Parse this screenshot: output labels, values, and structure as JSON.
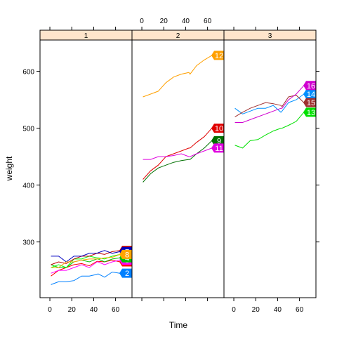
{
  "chart_data": {
    "type": "line",
    "xlabel": "Time",
    "ylabel": "weight",
    "xlim": [
      -9,
      75
    ],
    "ylim": [
      202,
      655
    ],
    "x_ticks": [
      0,
      20,
      40,
      60
    ],
    "y_ticks": [
      300,
      400,
      500,
      600
    ],
    "x": [
      1,
      8,
      15,
      22,
      29,
      36,
      43,
      44,
      50,
      57,
      64
    ],
    "colors": {
      "1": "#FF0000",
      "2": "#0080FF",
      "3": "#FF00FF",
      "4": "#00C000",
      "5": "#00FF00",
      "6": "#C00000",
      "7": "#0000C0",
      "8": "#FFA500",
      "9": "#007000",
      "10": "#E00000",
      "11": "#E000E0",
      "12": "#FFA000",
      "13": "#00E000",
      "14": "#0090FF",
      "15": "#A03030",
      "16": "#D000D0"
    },
    "panels": [
      {
        "strip": "1",
        "series": [
          {
            "name": "1",
            "values": [
              240,
              250,
              255,
              260,
              262,
              258,
              266,
              266,
              265,
              268,
              265
            ]
          },
          {
            "name": "2",
            "values": [
              225,
              230,
              230,
              232,
              240,
              240,
              243,
              244,
              238,
              247,
              245
            ]
          },
          {
            "name": "3",
            "values": [
              245,
              250,
              250,
              255,
              260,
              255,
              265,
              265,
              260,
              265,
              268
            ]
          },
          {
            "name": "4",
            "values": [
              260,
              255,
              255,
              265,
              268,
              265,
              270,
              270,
              265,
              270,
              272
            ]
          },
          {
            "name": "5",
            "values": [
              255,
              260,
              255,
              270,
              270,
              275,
              272,
              272,
              270,
              275,
              278
            ]
          },
          {
            "name": "6",
            "values": [
              260,
              265,
              262,
              270,
              275,
              275,
              280,
              280,
              278,
              283,
              285
            ]
          },
          {
            "name": "7",
            "values": [
              275,
              275,
              265,
              275,
              275,
              280,
              280,
              281,
              285,
              280,
              283
            ]
          },
          {
            "name": "8",
            "values": [
              255,
              255,
              265,
              265,
              268,
              270,
              270,
              270,
              272,
              273,
              278
            ]
          }
        ]
      },
      {
        "strip": "2",
        "series": [
          {
            "name": "9",
            "values": [
              405,
              420,
              430,
              435,
              440,
              443,
              445,
              445,
              455,
              465,
              478
            ]
          },
          {
            "name": "10",
            "values": [
              410,
              425,
              435,
              450,
              455,
              460,
              465,
              465,
              475,
              485,
              500
            ]
          },
          {
            "name": "11",
            "values": [
              445,
              445,
              450,
              450,
              452,
              455,
              450,
              450,
              455,
              460,
              465
            ]
          },
          {
            "name": "12",
            "values": [
              555,
              560,
              565,
              580,
              590,
              595,
              598,
              595,
              610,
              620,
              628
            ]
          }
        ]
      },
      {
        "strip": "3",
        "series": [
          {
            "name": "13",
            "values": [
              470,
              465,
              478,
              480,
              488,
              495,
              500,
              500,
              505,
              512,
              528
            ]
          },
          {
            "name": "14",
            "values": [
              535,
              525,
              530,
              535,
              535,
              540,
              528,
              530,
              545,
              550,
              560
            ]
          },
          {
            "name": "15",
            "values": [
              520,
              528,
              535,
              540,
              545,
              543,
              540,
              538,
              555,
              558,
              545
            ]
          },
          {
            "name": "16",
            "values": [
              510,
              510,
              515,
              520,
              525,
              530,
              535,
              535,
              550,
              560,
              575
            ]
          }
        ]
      }
    ]
  }
}
